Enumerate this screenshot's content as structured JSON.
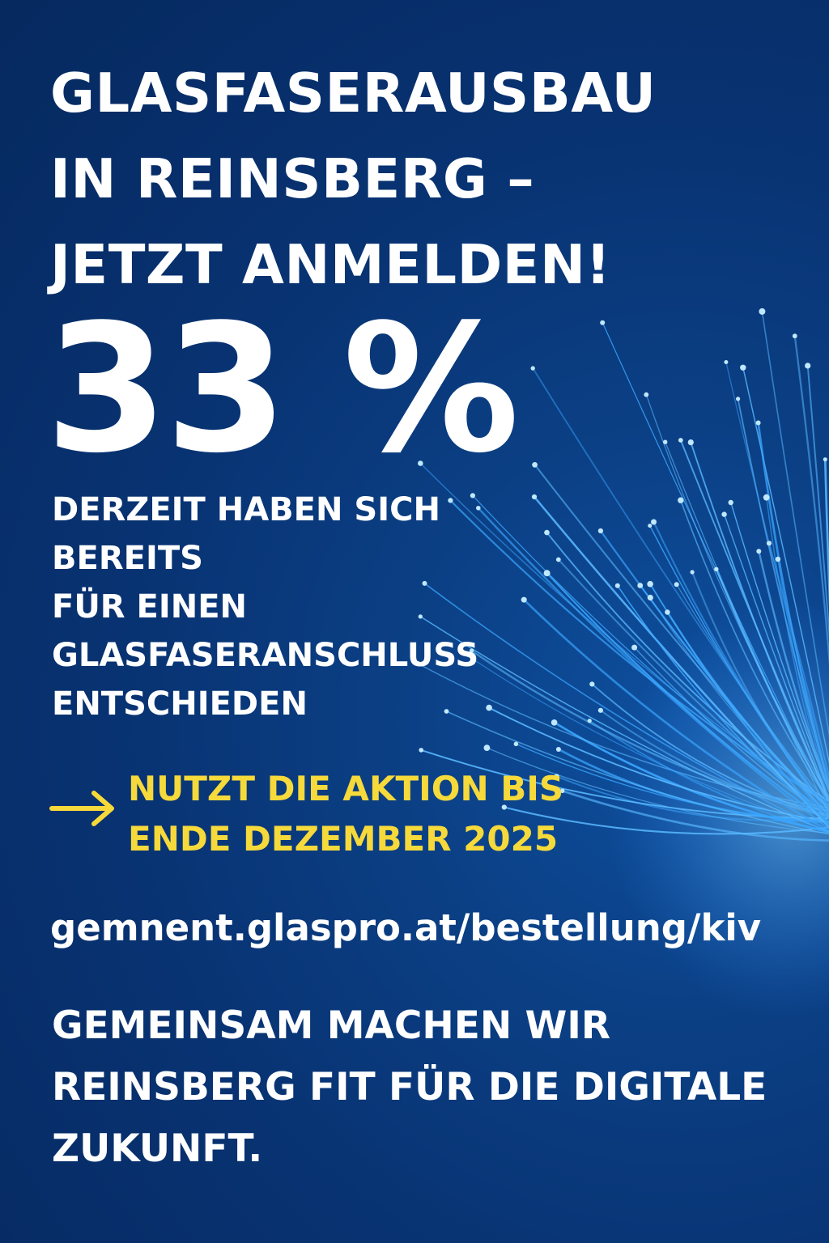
{
  "headline": {
    "lines": [
      "GLASFASERAUSBAU",
      "IN REINSBERG –",
      "JETZT ANMELDEN!"
    ]
  },
  "stat": {
    "value": "33 %",
    "description_lines": [
      "DERZEIT HABEN SICH",
      "BEREITS",
      "FÜR EINEN",
      "GLASFASERANSCHLUSS",
      "ENTSCHIEDEN"
    ]
  },
  "cta": {
    "icon": "arrow-right-icon",
    "lines": [
      "NUTZT DIE AKTION BIS",
      "ENDE DEZEMBER 2025"
    ]
  },
  "url": "gemnent.glaspro.at/bestellung/kiv",
  "closing": {
    "lines": [
      "GEMEINSAM MACHEN WIR",
      "REINSBERG FIT FÜR DIE DIGITALE",
      "ZUKUNFT."
    ]
  },
  "colors": {
    "background": "#083271",
    "text": "#ffffff",
    "accent": "#f6d93a",
    "fiber": "#3aa6ff"
  }
}
